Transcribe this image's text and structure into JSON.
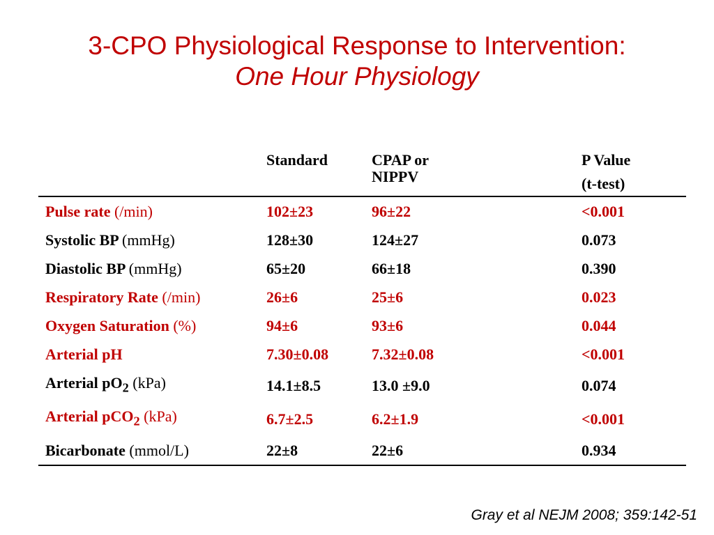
{
  "title": {
    "main": "3-CPO Physiological Response to Intervention:",
    "subtitle": "One Hour Physiology"
  },
  "table": {
    "headers": {
      "standard": "Standard",
      "cpap_line1": "CPAP or",
      "cpap_line2": "NIPPV",
      "p_line1": "P Value",
      "p_line2": "(t-test)"
    },
    "rows": [
      {
        "label": "Pulse rate",
        "sub": "",
        "unit": "(/min)",
        "standard": "102±23",
        "cpap": "96±22",
        "p": "<0.001",
        "highlight": true
      },
      {
        "label": "Systolic BP",
        "sub": "",
        "unit": "(mmHg)",
        "standard": "128±30",
        "cpap": "124±27",
        "p": "0.073",
        "highlight": false
      },
      {
        "label": "Diastolic BP",
        "sub": "",
        "unit": "(mmHg)",
        "standard": "65±20",
        "cpap": "66±18",
        "p": "0.390",
        "highlight": false
      },
      {
        "label": "Respiratory Rate",
        "sub": "",
        "unit": "(/min)",
        "standard": "26±6",
        "cpap": "25±6",
        "p": "0.023",
        "highlight": true
      },
      {
        "label": "Oxygen Saturation",
        "sub": "",
        "unit": "(%)",
        "standard": "94±6",
        "cpap": "93±6",
        "p": "0.044",
        "highlight": true
      },
      {
        "label": "Arterial pH",
        "sub": "",
        "unit": "",
        "standard": "7.30±0.08",
        "cpap": "7.32±0.08",
        "p": "<0.001",
        "highlight": true
      },
      {
        "label": "Arterial pO",
        "sub": "2",
        "unit": "(kPa)",
        "standard": "14.1±8.5",
        "cpap": "13.0 ±9.0",
        "p": "0.074",
        "highlight": false
      },
      {
        "label": "Arterial pCO",
        "sub": "2",
        "unit": "(kPa)",
        "standard": "6.7±2.5",
        "cpap": "6.2±1.9",
        "p": "<0.001",
        "highlight": true
      },
      {
        "label": "Bicarbonate",
        "sub": "",
        "unit": "(mmol/L)",
        "standard": "22±8",
        "cpap": "22±6",
        "p": "0.934",
        "highlight": false
      }
    ]
  },
  "citation": "Gray et al NEJM 2008; 359:142-51",
  "colors": {
    "accent_red": "#c00000",
    "text": "#000000",
    "background": "#ffffff"
  }
}
